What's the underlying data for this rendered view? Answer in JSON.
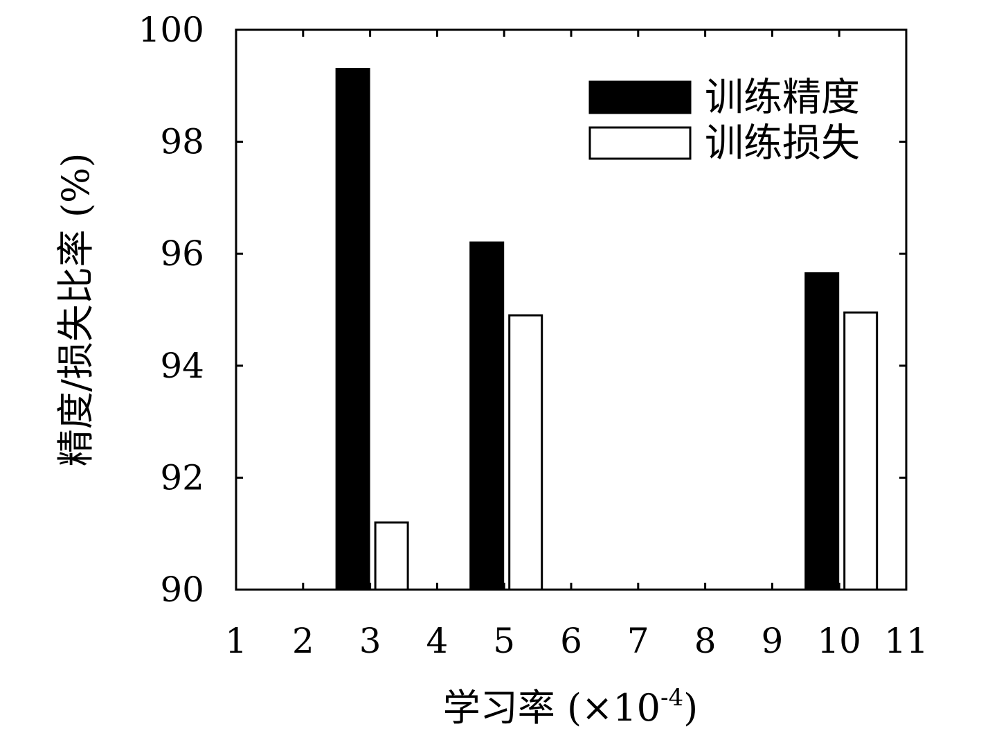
{
  "chart_data": {
    "type": "bar",
    "xlabel": "学习率 (×10",
    "xlabel_exponent": "-4",
    "xlabel_suffix": ")",
    "ylabel": "精度/损失比率 (%)",
    "xlim": [
      1,
      11
    ],
    "ylim": [
      90,
      100
    ],
    "x_ticks": [
      "1",
      "2",
      "3",
      "4",
      "5",
      "6",
      "7",
      "8",
      "9",
      "10",
      "11"
    ],
    "y_ticks": [
      "90",
      "92",
      "94",
      "96",
      "98",
      "100"
    ],
    "legend_position": "top-right",
    "grid": false,
    "series": [
      {
        "name": "训练精度",
        "fill": "#000000",
        "points": [
          {
            "x": 3,
            "value": 99.3
          },
          {
            "x": 5,
            "value": 96.2
          },
          {
            "x": 10,
            "value": 95.65
          }
        ]
      },
      {
        "name": "训练损失",
        "fill": "#ffffff",
        "points": [
          {
            "x": 3,
            "value": 91.2
          },
          {
            "x": 5,
            "value": 94.9
          },
          {
            "x": 10,
            "value": 94.95
          }
        ]
      }
    ]
  }
}
